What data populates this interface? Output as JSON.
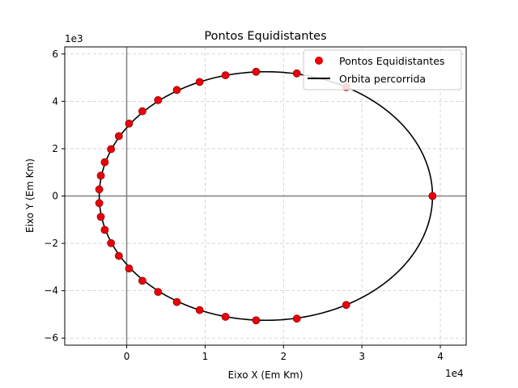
{
  "chart_data": {
    "type": "scatter",
    "title": "Pontos Equidistantes",
    "xlabel": "Eixo X (Em Km)",
    "ylabel": "Eixo Y (Em Km)",
    "x_offset_label": "1e4",
    "y_offset_label": "1e3",
    "xlim": [
      -7900,
      43300
    ],
    "ylim": [
      -6300,
      6300
    ],
    "x_ticks": [
      0,
      10000,
      20000,
      30000,
      40000
    ],
    "x_tick_labels": [
      "0",
      "1",
      "2",
      "3",
      "4"
    ],
    "y_ticks": [
      -6000,
      -4000,
      -2000,
      0,
      2000,
      4000,
      6000
    ],
    "y_tick_labels": [
      "−6",
      "−4",
      "−2",
      "0",
      "2",
      "4",
      "6"
    ],
    "grid": true,
    "legend_position": "top-right",
    "colors": {
      "points": "#e8000b",
      "orbit": "#000000",
      "grid": "#cccccc",
      "axes_lines": "#808080"
    },
    "series": [
      {
        "name": "Pontos Equidistantes",
        "kind": "points",
        "x": [
          39000,
          28000,
          21700,
          16500,
          12600,
          9300,
          6400,
          4000,
          2000,
          300,
          -1000,
          -2000,
          -2800,
          -3300,
          -3500,
          -3500,
          -3300,
          -2800,
          -2000,
          -1000,
          300,
          2000,
          4000,
          6400,
          9300,
          12600,
          16500,
          21700,
          28000
        ],
        "y": [
          0,
          4600,
          5180,
          5250,
          5100,
          4820,
          4480,
          4050,
          3580,
          3060,
          2530,
          1980,
          1430,
          860,
          280,
          -300,
          -880,
          -1430,
          -1990,
          -2530,
          -3060,
          -3580,
          -4050,
          -4480,
          -4820,
          -5100,
          -5250,
          -5180,
          -4600
        ]
      },
      {
        "name": "Orbita percorrida",
        "kind": "ellipse",
        "center_x": 17750,
        "center_y": 0,
        "semi_major_x": 21250,
        "semi_minor_y": 5250
      }
    ]
  }
}
